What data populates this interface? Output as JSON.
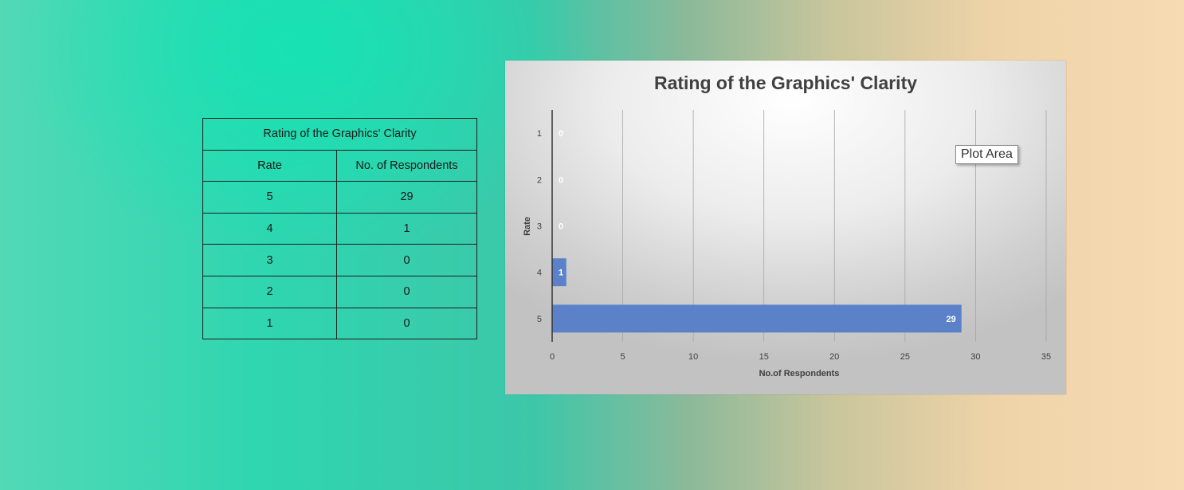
{
  "table": {
    "title": "Rating of the Graphics' Clarity",
    "headers": [
      "Rate",
      "No. of Respondents"
    ],
    "rows": [
      [
        "5",
        "29"
      ],
      [
        "4",
        "1"
      ],
      [
        "3",
        "0"
      ],
      [
        "2",
        "0"
      ],
      [
        "1",
        "0"
      ]
    ]
  },
  "tooltip": "Plot Area",
  "chart_data": {
    "type": "bar",
    "orientation": "horizontal",
    "title": "Rating of the Graphics' Clarity",
    "xlabel": "No.of Respondents",
    "ylabel": "Rate",
    "categories": [
      "1",
      "2",
      "3",
      "4",
      "5"
    ],
    "values": [
      0,
      0,
      0,
      1,
      29
    ],
    "data_labels": [
      "0",
      "0",
      "0",
      "1",
      "29"
    ],
    "xlim": [
      0,
      35
    ],
    "xticks": [
      "0",
      "5",
      "10",
      "15",
      "20",
      "25",
      "30",
      "35"
    ],
    "grid": true,
    "bar_color": "#5b82c9"
  }
}
